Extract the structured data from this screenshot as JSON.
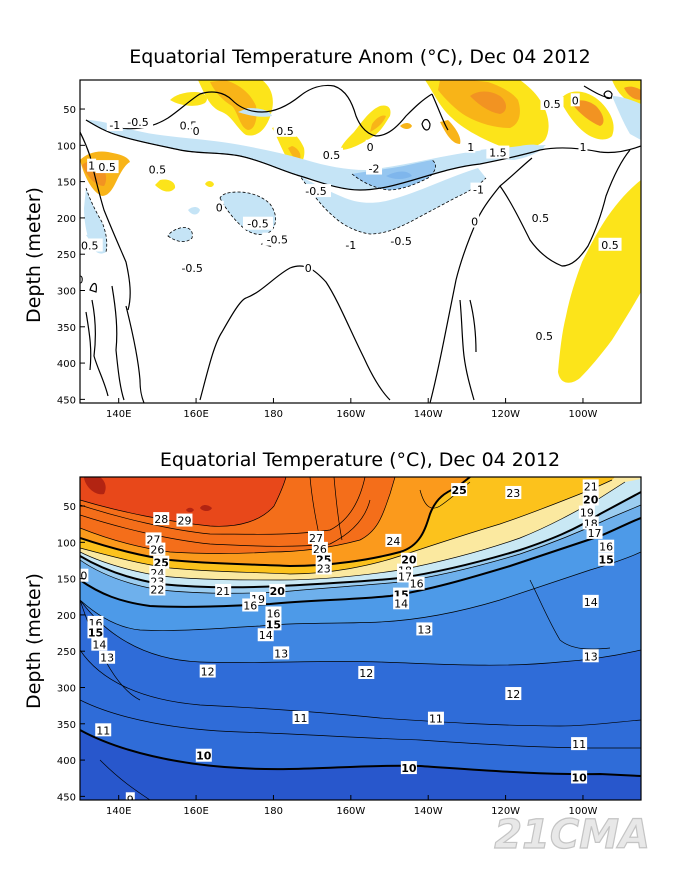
{
  "chart_data": [
    {
      "type": "heatmap",
      "title": "Equatorial Temperature Anom (°C), Dec 04 2012",
      "xlabel": "",
      "ylabel": "Depth (meter)",
      "xlim": [
        130,
        275
      ],
      "ylim": [
        455,
        10
      ],
      "x_ticks": [
        "140E",
        "160E",
        "180",
        "160W",
        "140W",
        "120W",
        "100W"
      ],
      "y_ticks": [
        50,
        100,
        150,
        200,
        250,
        300,
        350,
        400,
        450
      ],
      "colors": {
        "warm_light": "#fce41a",
        "warm_mid": "#f8b418",
        "warm_strong": "#f29322",
        "cool_light": "#c5e4f6",
        "cool_mid": "#95c6f0"
      },
      "contour_labels": [
        {
          "text": "0",
          "lon": 130,
          "depth": 285
        },
        {
          "text": "1",
          "lon": 133,
          "depth": 128
        },
        {
          "text": "0.5",
          "lon": 137,
          "depth": 130
        },
        {
          "text": "-0.5",
          "lon": 132,
          "depth": 238
        },
        {
          "text": "-1",
          "lon": 139,
          "depth": 72
        },
        {
          "text": "-0.5",
          "lon": 145,
          "depth": 68
        },
        {
          "text": "0.5",
          "lon": 158,
          "depth": 73
        },
        {
          "text": "0",
          "lon": 160,
          "depth": 80
        },
        {
          "text": "0.5",
          "lon": 150,
          "depth": 133
        },
        {
          "text": "-0.5",
          "lon": 159,
          "depth": 269
        },
        {
          "text": "0",
          "lon": 166,
          "depth": 186
        },
        {
          "text": "-0.5",
          "lon": 176,
          "depth": 208
        },
        {
          "text": "-0.5",
          "lon": 181,
          "depth": 230
        },
        {
          "text": "0.5",
          "lon": 183,
          "depth": 80
        },
        {
          "text": "0",
          "lon": 189,
          "depth": 269
        },
        {
          "text": "-0.5",
          "lon": 191,
          "depth": 163
        },
        {
          "text": "0.5",
          "lon": 195,
          "depth": 113
        },
        {
          "text": "0",
          "lon": 205,
          "depth": 102
        },
        {
          "text": "-2",
          "lon": 206,
          "depth": 132
        },
        {
          "text": "-1",
          "lon": 200,
          "depth": 237
        },
        {
          "text": "-0.5",
          "lon": 213,
          "depth": 232
        },
        {
          "text": "1",
          "lon": 231,
          "depth": 102
        },
        {
          "text": "1.5",
          "lon": 238,
          "depth": 110
        },
        {
          "text": "-1",
          "lon": 233,
          "depth": 161
        },
        {
          "text": "0",
          "lon": 232,
          "depth": 205
        },
        {
          "text": "0.5",
          "lon": 249,
          "depth": 200
        },
        {
          "text": "0.5",
          "lon": 252,
          "depth": 43
        },
        {
          "text": "0",
          "lon": 258,
          "depth": 38
        },
        {
          "text": "1",
          "lon": 260,
          "depth": 102
        },
        {
          "text": "0.5",
          "lon": 267,
          "depth": 237
        },
        {
          "text": "0.5",
          "lon": 250,
          "depth": 363
        }
      ]
    },
    {
      "type": "heatmap",
      "title": "Equatorial Temperature (°C), Dec 04 2012",
      "xlabel": "",
      "ylabel": "Depth (meter)",
      "xlim": [
        130,
        275
      ],
      "ylim": [
        455,
        10
      ],
      "x_ticks": [
        "140E",
        "160E",
        "180",
        "160W",
        "140W",
        "120W",
        "100W"
      ],
      "y_ticks": [
        50,
        100,
        150,
        200,
        250,
        300,
        350,
        400,
        450
      ],
      "colors": {
        "t29": "#e8481a",
        "t27": "#f46e1a",
        "t25": "#fb9a1c",
        "t23": "#fcc21c",
        "t21": "#fbe9a0",
        "t19": "#c9e8f4",
        "t17": "#9ccdf0",
        "t15": "#6eb0ec",
        "t13": "#4d9ae8",
        "t11": "#3f86e2",
        "t10": "#2f6cd8",
        "t9": "#2857cc",
        "t30": "#b22412"
      },
      "contour_labels": [
        {
          "text": "28",
          "lon": 151,
          "depth": 68
        },
        {
          "text": "29",
          "lon": 157,
          "depth": 70
        },
        {
          "text": "27",
          "lon": 149,
          "depth": 96
        },
        {
          "text": "26",
          "lon": 150,
          "depth": 110
        },
        {
          "text": "25",
          "lon": 151,
          "depth": 128,
          "bold": true
        },
        {
          "text": "24",
          "lon": 150,
          "depth": 142
        },
        {
          "text": "23",
          "lon": 150,
          "depth": 154
        },
        {
          "text": "22",
          "lon": 150,
          "depth": 165
        },
        {
          "text": "21",
          "lon": 167,
          "depth": 167
        },
        {
          "text": "20",
          "lon": 181,
          "depth": 167,
          "bold": true
        },
        {
          "text": "19",
          "lon": 176,
          "depth": 178
        },
        {
          "text": "16",
          "lon": 174,
          "depth": 187
        },
        {
          "text": "16",
          "lon": 180,
          "depth": 198
        },
        {
          "text": "15",
          "lon": 180,
          "depth": 213,
          "bold": true
        },
        {
          "text": "14",
          "lon": 178,
          "depth": 228
        },
        {
          "text": "0",
          "lon": 131,
          "depth": 146
        },
        {
          "text": "16",
          "lon": 134,
          "depth": 211
        },
        {
          "text": "15",
          "lon": 134,
          "depth": 224,
          "bold": true
        },
        {
          "text": "14",
          "lon": 135,
          "depth": 241
        },
        {
          "text": "13",
          "lon": 137,
          "depth": 259
        },
        {
          "text": "13",
          "lon": 182,
          "depth": 253
        },
        {
          "text": "12",
          "lon": 163,
          "depth": 278
        },
        {
          "text": "11",
          "lon": 136,
          "depth": 359
        },
        {
          "text": "11",
          "lon": 187,
          "depth": 342
        },
        {
          "text": "10",
          "lon": 162,
          "depth": 394,
          "bold": true
        },
        {
          "text": "27",
          "lon": 191,
          "depth": 94
        },
        {
          "text": "26",
          "lon": 192,
          "depth": 109
        },
        {
          "text": "25",
          "lon": 193,
          "depth": 124,
          "bold": true
        },
        {
          "text": "23",
          "lon": 193,
          "depth": 136
        },
        {
          "text": "24",
          "lon": 211,
          "depth": 98
        },
        {
          "text": "20",
          "lon": 215,
          "depth": 124,
          "bold": true
        },
        {
          "text": "18",
          "lon": 214,
          "depth": 139
        },
        {
          "text": "17",
          "lon": 214,
          "depth": 147
        },
        {
          "text": "16",
          "lon": 217,
          "depth": 157
        },
        {
          "text": "15",
          "lon": 213,
          "depth": 172,
          "bold": true
        },
        {
          "text": "14",
          "lon": 213,
          "depth": 184
        },
        {
          "text": "13",
          "lon": 219,
          "depth": 220
        },
        {
          "text": "12",
          "lon": 204,
          "depth": 280
        },
        {
          "text": "12",
          "lon": 242,
          "depth": 309
        },
        {
          "text": "11",
          "lon": 222,
          "depth": 343
        },
        {
          "text": "10",
          "lon": 215,
          "depth": 411,
          "bold": true
        },
        {
          "text": "25",
          "lon": 228,
          "depth": 28,
          "bold": true
        },
        {
          "text": "23",
          "lon": 242,
          "depth": 32
        },
        {
          "text": "21",
          "lon": 262,
          "depth": 23
        },
        {
          "text": "20",
          "lon": 262,
          "depth": 41,
          "bold": true
        },
        {
          "text": "19",
          "lon": 261,
          "depth": 59
        },
        {
          "text": "18",
          "lon": 262,
          "depth": 74
        },
        {
          "text": "17",
          "lon": 263,
          "depth": 87
        },
        {
          "text": "16",
          "lon": 266,
          "depth": 106
        },
        {
          "text": "15",
          "lon": 266,
          "depth": 124,
          "bold": true
        },
        {
          "text": "14",
          "lon": 262,
          "depth": 182
        },
        {
          "text": "13",
          "lon": 262,
          "depth": 257
        },
        {
          "text": "11",
          "lon": 259,
          "depth": 378
        },
        {
          "text": "10",
          "lon": 259,
          "depth": 424,
          "bold": true
        },
        {
          "text": "9",
          "lon": 143,
          "depth": 454
        }
      ]
    }
  ],
  "watermark": "21CMA"
}
